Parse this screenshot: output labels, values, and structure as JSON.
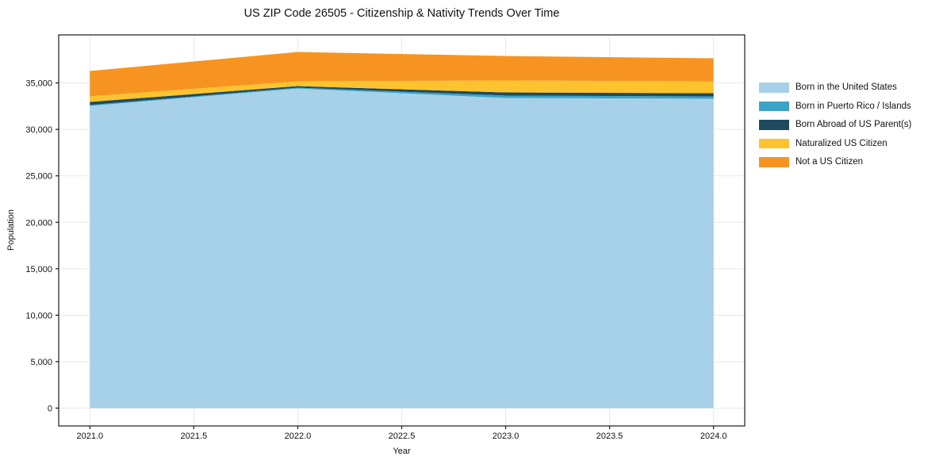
{
  "chart_data": {
    "type": "area",
    "stacked": true,
    "title": "US ZIP Code 26505 - Citizenship & Nativity Trends Over Time",
    "xlabel": "Year",
    "ylabel": "Population",
    "x": [
      2021,
      2022,
      2023,
      2024
    ],
    "series": [
      {
        "name": "Born in the United States",
        "color": "#A6D1E8",
        "values": [
          32530,
          34400,
          33380,
          33290
        ]
      },
      {
        "name": "Born in Puerto Rico / Islands",
        "color": "#3CA4C5",
        "values": [
          90,
          90,
          260,
          260
        ]
      },
      {
        "name": "Born Abroad of US Parent(s)",
        "color": "#1F4A5E",
        "values": [
          340,
          170,
          340,
          340
        ]
      },
      {
        "name": "Naturalized US Citizen",
        "color": "#FDC32E",
        "values": [
          600,
          510,
          1280,
          1280
        ]
      },
      {
        "name": "Not a US Citizen",
        "color": "#F79421",
        "values": [
          2730,
          3160,
          2640,
          2480
        ]
      }
    ],
    "xlim": [
      2020.85,
      2024.15
    ],
    "ylim": [
      -1920,
      40170
    ],
    "x_tick_values": [
      2021.0,
      2021.5,
      2022.0,
      2022.5,
      2023.0,
      2023.5,
      2024.0
    ],
    "x_tick_labels": [
      "2021.0",
      "2021.5",
      "2022.0",
      "2022.5",
      "2023.0",
      "2023.5",
      "2024.0"
    ],
    "y_tick_values": [
      0,
      5000,
      10000,
      15000,
      20000,
      25000,
      30000,
      35000
    ],
    "y_tick_labels": [
      "0",
      "5,000",
      "10,000",
      "15,000",
      "20,000",
      "25,000",
      "30,000",
      "35,000"
    ],
    "grid": true,
    "grid_color": "#E9E9E9",
    "frame_color": "#1a1a1a",
    "legend_position": "right"
  }
}
